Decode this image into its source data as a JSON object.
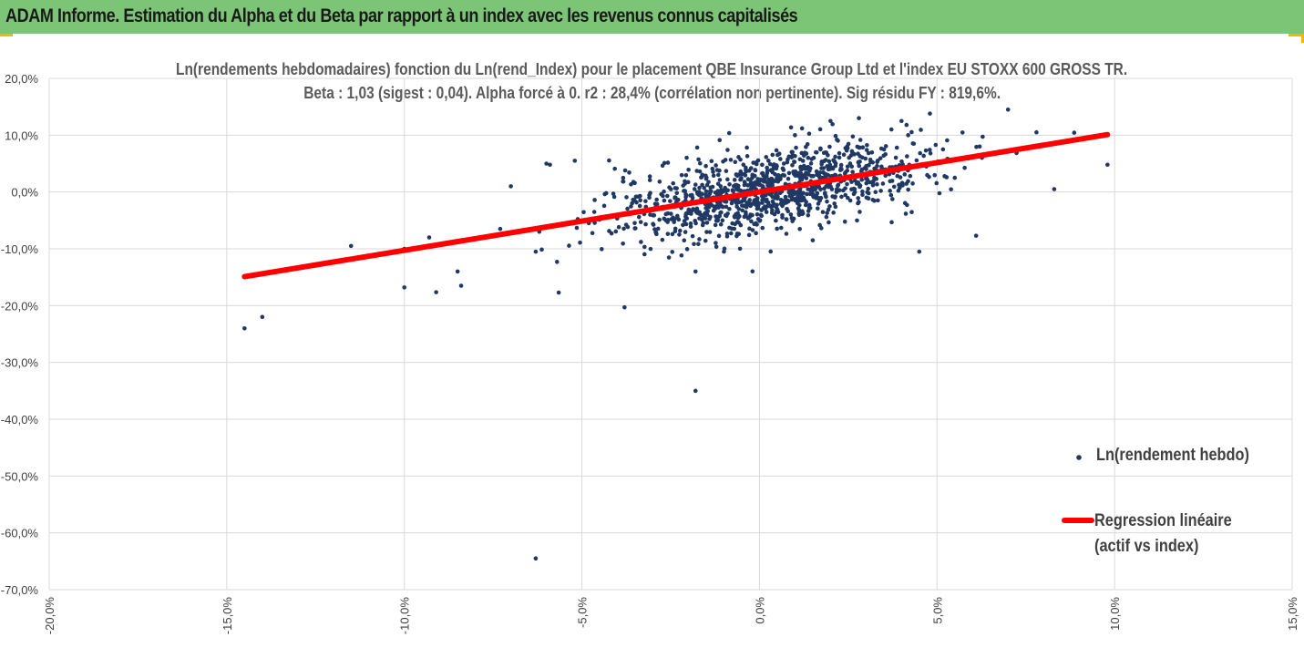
{
  "banner": {
    "title": "ADAM Informe. Estimation du Alpha et du Beta par rapport à un index avec les revenus connus capitalisés"
  },
  "colors": {
    "banner_bg": "#7cc576",
    "corner_accent": "#f0b800",
    "points": "#1f3864",
    "regression": "#ff0000",
    "grid": "#d9d9d9"
  },
  "chart_data": {
    "type": "scatter",
    "title_line1": "Ln(rendements hebdomadaires) fonction du Ln(rend_Index) pour le placement QBE Insurance Group Ltd et l'index EU STOXX 600 GROSS TR.",
    "title_line2": "Beta : 1,03 (sigest : 0,04). Alpha forcé à 0. r2 : 28,4% (corrélation non pertinente). Sig résidu FY : 819,6%.",
    "xlim": [
      -0.2,
      0.15
    ],
    "ylim": [
      -0.7,
      0.2
    ],
    "x_ticks": [
      -0.2,
      -0.15,
      -0.1,
      -0.05,
      0.0,
      0.05,
      0.1,
      0.15
    ],
    "x_tick_labels": [
      "-20,0%",
      "-15,0%",
      "-10,0%",
      "-5,0%",
      "0,0%",
      "5,0%",
      "10,0%",
      "15,0%"
    ],
    "y_ticks": [
      0.2,
      0.1,
      0.0,
      -0.1,
      -0.2,
      -0.3,
      -0.4,
      -0.5,
      -0.6,
      -0.7
    ],
    "y_tick_labels": [
      "20,0%",
      "10,0%",
      "0,0%",
      "-10,0%",
      "-20,0%",
      "-30,0%",
      "-40,0%",
      "-50,0%",
      "-60,0%",
      "-70,0%"
    ],
    "grid": true,
    "legend": {
      "position": "right",
      "scatter_label": "Ln(rendement hebdo)",
      "line_label_1": "Regression linéaire",
      "line_label_2": "(actif vs index)"
    },
    "series": [
      {
        "name": "Ln(rendement hebdo)",
        "kind": "scatter",
        "outliers": [
          [
            -0.145,
            -0.24
          ],
          [
            -0.14,
            -0.22
          ],
          [
            -0.115,
            -0.095
          ],
          [
            -0.1,
            -0.1
          ],
          [
            -0.1,
            -0.168
          ],
          [
            -0.093,
            -0.08
          ],
          [
            -0.085,
            -0.14
          ],
          [
            -0.084,
            -0.165
          ],
          [
            -0.07,
            0.01
          ],
          [
            -0.073,
            -0.065
          ],
          [
            -0.063,
            -0.105
          ],
          [
            -0.062,
            -0.07
          ],
          [
            -0.06,
            0.05
          ],
          [
            -0.059,
            0.048
          ],
          [
            -0.063,
            -0.645
          ],
          [
            -0.057,
            -0.123
          ],
          [
            -0.052,
            0.055
          ],
          [
            -0.038,
            -0.203
          ],
          [
            -0.018,
            -0.14
          ],
          [
            -0.018,
            -0.35
          ],
          [
            -0.01,
            -0.105
          ],
          [
            0.01,
            0.1
          ],
          [
            0.012,
            0.112
          ],
          [
            0.015,
            -0.085
          ],
          [
            0.02,
            0.125
          ],
          [
            0.028,
            0.13
          ],
          [
            0.04,
            0.125
          ],
          [
            0.045,
            -0.105
          ],
          [
            0.048,
            0.138
          ],
          [
            0.055,
            0.025
          ],
          [
            0.061,
            -0.077
          ],
          [
            0.062,
            0.08
          ],
          [
            0.07,
            0.145
          ],
          [
            0.078,
            0.105
          ],
          [
            0.083,
            0.005
          ],
          [
            0.098,
            0.048
          ]
        ],
        "cluster": {
          "count": 1150,
          "x_sd": 0.022,
          "slope": 1.03,
          "resid_sd": 0.034,
          "seed": 7
        }
      },
      {
        "name": "Regression linéaire (actif vs index)",
        "kind": "line",
        "x": [
          -0.145,
          0.098
        ],
        "y": [
          -0.149,
          0.101
        ]
      }
    ]
  }
}
